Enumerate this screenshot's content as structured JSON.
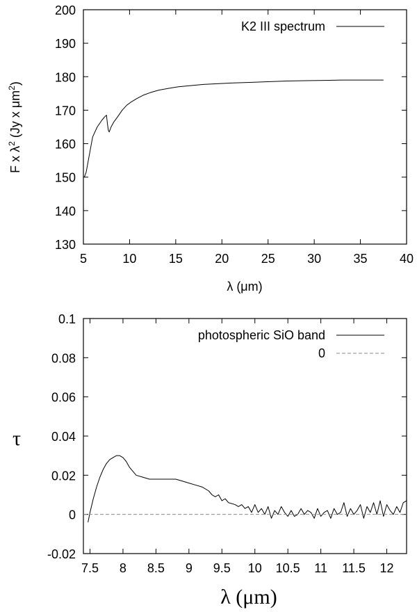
{
  "chart_data": [
    {
      "type": "line",
      "xlabel": "λ (μm)",
      "ylabel": "F x λ² (Jy x μm²)",
      "ylabel_parts": [
        "F x λ",
        "2",
        " (Jy x μm",
        "2",
        ")"
      ],
      "xlim": [
        5,
        40
      ],
      "ylim": [
        130,
        200
      ],
      "xticks": [
        5,
        10,
        15,
        20,
        25,
        30,
        35,
        40
      ],
      "yticks": [
        130,
        140,
        150,
        160,
        170,
        180,
        190,
        200
      ],
      "legend": "top-right",
      "series": [
        {
          "name": "K2 III spectrum",
          "style": "solid",
          "color": "#000000",
          "x": [
            5.1,
            5.3,
            5.6,
            6.0,
            6.5,
            7.0,
            7.3,
            7.5,
            7.6,
            7.7,
            7.8,
            8.0,
            8.3,
            8.7,
            9.2,
            9.7,
            10.2,
            10.8,
            11.5,
            12.3,
            13.2,
            14.2,
            15.3,
            16.5,
            18.0,
            19.5,
            21.0,
            23.0,
            25.0,
            27.0,
            29.0,
            31.0,
            33.0,
            35.0,
            37.5
          ],
          "y": [
            150,
            151.5,
            156,
            162,
            165,
            167,
            168,
            168.5,
            166,
            164,
            163.5,
            165,
            166.5,
            168,
            170,
            171.5,
            172.5,
            173.5,
            174.5,
            175.3,
            176,
            176.5,
            177,
            177.3,
            177.7,
            177.9,
            178.1,
            178.3,
            178.5,
            178.7,
            178.8,
            178.9,
            179,
            179,
            179
          ]
        }
      ]
    },
    {
      "type": "line",
      "xlabel": "λ (μm)",
      "ylabel": "τ",
      "xlim": [
        7.4,
        12.3
      ],
      "ylim": [
        -0.02,
        0.1
      ],
      "xticks": [
        7.5,
        8,
        8.5,
        9,
        9.5,
        10,
        10.5,
        11,
        11.5,
        12
      ],
      "yticks": [
        -0.02,
        0,
        0.02,
        0.04,
        0.06,
        0.08,
        0.1
      ],
      "legend": "top-right",
      "series": [
        {
          "name": "photospheric SiO band",
          "style": "solid",
          "color": "#000000",
          "x": [
            7.47,
            7.5,
            7.55,
            7.6,
            7.65,
            7.7,
            7.75,
            7.8,
            7.85,
            7.9,
            7.95,
            8.0,
            8.05,
            8.1,
            8.15,
            8.2,
            8.3,
            8.4,
            8.5,
            8.6,
            8.7,
            8.8,
            8.9,
            9.0,
            9.1,
            9.2,
            9.3,
            9.35,
            9.4,
            9.45,
            9.5,
            9.55,
            9.6,
            9.7,
            9.75,
            9.8,
            9.85,
            9.9,
            9.95,
            10.0,
            10.05,
            10.1,
            10.15,
            10.2,
            10.25,
            10.3,
            10.35,
            10.4,
            10.45,
            10.5,
            10.55,
            10.6,
            10.65,
            10.7,
            10.75,
            10.8,
            10.85,
            10.9,
            10.95,
            11.0,
            11.05,
            11.1,
            11.15,
            11.2,
            11.25,
            11.3,
            11.35,
            11.4,
            11.45,
            11.5,
            11.55,
            11.6,
            11.65,
            11.7,
            11.75,
            11.8,
            11.85,
            11.9,
            11.95,
            12.0,
            12.05,
            12.1,
            12.15,
            12.2,
            12.25,
            12.3
          ],
          "y": [
            -0.004,
            0.001,
            0.008,
            0.014,
            0.019,
            0.023,
            0.026,
            0.028,
            0.029,
            0.03,
            0.03,
            0.029,
            0.027,
            0.024,
            0.022,
            0.02,
            0.019,
            0.018,
            0.018,
            0.018,
            0.018,
            0.018,
            0.017,
            0.016,
            0.015,
            0.014,
            0.012,
            0.01,
            0.009,
            0.01,
            0.007,
            0.008,
            0.006,
            0.005,
            0.004,
            0.005,
            0.003,
            0.004,
            0.001,
            0.005,
            0.001,
            0.003,
            0.0,
            0.004,
            -0.002,
            0.002,
            0.0,
            0.004,
            0.001,
            -0.001,
            0.002,
            -0.001,
            0.0,
            0.003,
            0.0,
            0.002,
            0.001,
            -0.002,
            0.003,
            -0.001,
            0.001,
            0.002,
            -0.002,
            0.003,
            0.0,
            0.001,
            0.006,
            -0.001,
            0.003,
            0.0,
            0.002,
            0.005,
            -0.002,
            0.004,
            0.001,
            0.006,
            0.0,
            0.007,
            -0.001,
            0.005,
            0.002,
            0.0,
            0.004,
            0.001,
            0.006,
            0.007
          ]
        },
        {
          "name": "0",
          "style": "dashed",
          "color": "#8a8a8a",
          "x": [
            7.4,
            12.3
          ],
          "y": [
            0,
            0
          ]
        }
      ]
    }
  ]
}
